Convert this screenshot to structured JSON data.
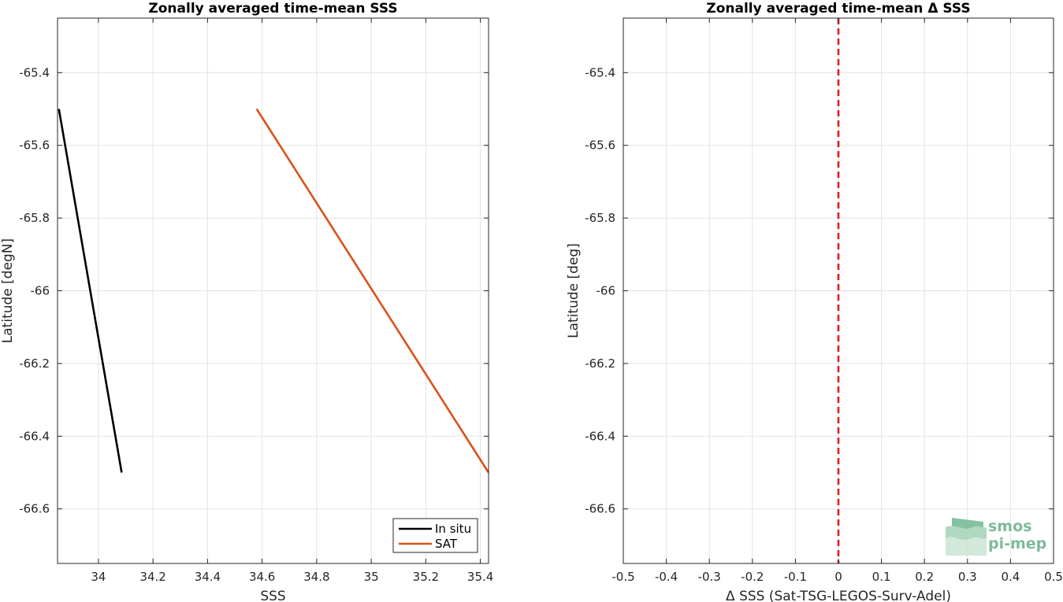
{
  "chart_data": [
    {
      "type": "line",
      "title": "Zonally averaged time-mean SSS",
      "xlabel": "SSS",
      "ylabel": "Latitude [degN]",
      "xlim": [
        33.85,
        35.43
      ],
      "ylim": [
        -66.75,
        -65.25
      ],
      "xticks": [
        34,
        34.2,
        34.4,
        34.6,
        34.8,
        35,
        35.2,
        35.4
      ],
      "xtick_labels": [
        "34",
        "34.2",
        "34.4",
        "34.6",
        "34.8",
        "35",
        "35.2",
        "35.4"
      ],
      "yticks": [
        -65.4,
        -65.6,
        -65.8,
        -66,
        -66.2,
        -66.4,
        -66.6
      ],
      "ytick_labels": [
        "-65.4",
        "-65.6",
        "-65.8",
        "-66",
        "-66.2",
        "-66.4",
        "-66.6"
      ],
      "grid": true,
      "legend_position": "bottom-right",
      "series": [
        {
          "name": "In situ",
          "color": "#000000",
          "x": [
            33.855,
            34.085
          ],
          "y": [
            -65.5,
            -66.5
          ]
        },
        {
          "name": "SAT",
          "color": "#d95319",
          "x": [
            34.58,
            35.43
          ],
          "y": [
            -65.5,
            -66.5
          ]
        }
      ]
    },
    {
      "type": "line",
      "title": "Zonally averaged time-mean Δ SSS",
      "xlabel": "Δ SSS (Sat-TSG-LEGOS-Surv-Adel)",
      "ylabel": "Latitude [deg]",
      "xlim": [
        -0.5,
        0.5
      ],
      "ylim": [
        -66.75,
        -65.25
      ],
      "xticks": [
        -0.5,
        -0.4,
        -0.3,
        -0.2,
        -0.1,
        0,
        0.1,
        0.2,
        0.3,
        0.4,
        0.5
      ],
      "xtick_labels": [
        "-0.5",
        "-0.4",
        "-0.3",
        "-0.2",
        "-0.1",
        "0",
        "0.1",
        "0.2",
        "0.3",
        "0.4",
        "0.5"
      ],
      "yticks": [
        -65.4,
        -65.6,
        -65.8,
        -66,
        -66.2,
        -66.4,
        -66.6
      ],
      "ytick_labels": [
        "-65.4",
        "-65.6",
        "-65.8",
        "-66",
        "-66.2",
        "-66.4",
        "-66.6"
      ],
      "grid": true,
      "reference_line": {
        "x": 0,
        "color": "#e41a1c",
        "style": "dashed"
      }
    }
  ],
  "logo": {
    "line1": "smos",
    "line2": "pi-mep",
    "color": "#7dbb9a"
  }
}
